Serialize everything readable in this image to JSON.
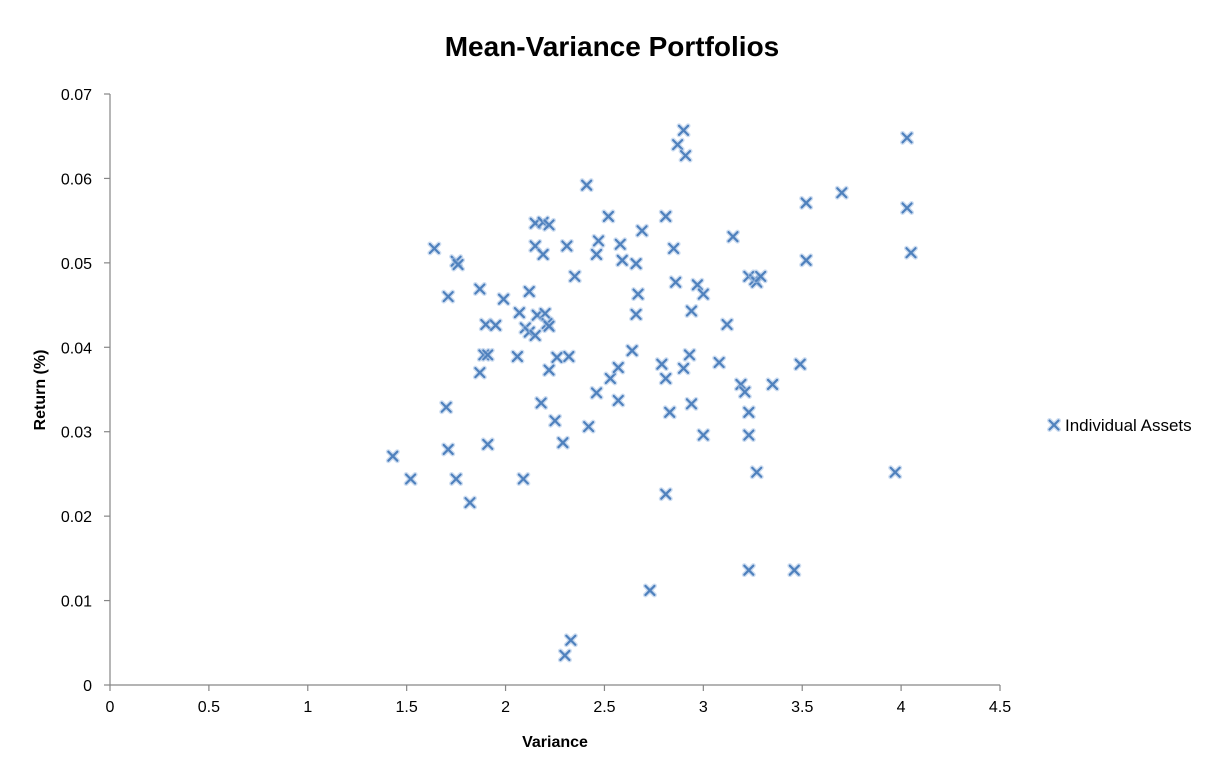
{
  "chart_data": {
    "type": "scatter",
    "title": "Mean-Variance Portfolios",
    "xlabel": "Variance",
    "ylabel": "Return (%)",
    "xlim": [
      0,
      4.5
    ],
    "ylim": [
      0,
      0.07
    ],
    "x_ticks": [
      "0",
      "0.5",
      "1",
      "1.5",
      "2",
      "2.5",
      "3",
      "3.5",
      "4",
      "4.5"
    ],
    "y_ticks": [
      "0",
      "0.01",
      "0.02",
      "0.03",
      "0.04",
      "0.05",
      "0.06",
      "0.07"
    ],
    "grid": false,
    "legend_position": "right",
    "marker": "x",
    "marker_color": "#4f81bd",
    "series": [
      {
        "name": "Individual Assets",
        "points": [
          [
            1.43,
            0.0271
          ],
          [
            1.52,
            0.0244
          ],
          [
            1.64,
            0.0517
          ],
          [
            1.7,
            0.0329
          ],
          [
            1.71,
            0.046
          ],
          [
            1.71,
            0.0279
          ],
          [
            1.75,
            0.0502
          ],
          [
            1.75,
            0.0244
          ],
          [
            1.76,
            0.0498
          ],
          [
            1.82,
            0.0216
          ],
          [
            1.87,
            0.0469
          ],
          [
            1.87,
            0.037
          ],
          [
            1.89,
            0.0391
          ],
          [
            1.9,
            0.0427
          ],
          [
            1.91,
            0.0391
          ],
          [
            1.91,
            0.0285
          ],
          [
            1.95,
            0.0426
          ],
          [
            1.99,
            0.0457
          ],
          [
            2.06,
            0.0389
          ],
          [
            2.07,
            0.0441
          ],
          [
            2.09,
            0.0244
          ],
          [
            2.1,
            0.0423
          ],
          [
            2.12,
            0.0466
          ],
          [
            2.12,
            0.0418
          ],
          [
            2.15,
            0.0547
          ],
          [
            2.15,
            0.052
          ],
          [
            2.15,
            0.0414
          ],
          [
            2.16,
            0.0438
          ],
          [
            2.18,
            0.0334
          ],
          [
            2.19,
            0.0548
          ],
          [
            2.19,
            0.051
          ],
          [
            2.2,
            0.044
          ],
          [
            2.21,
            0.0428
          ],
          [
            2.22,
            0.0545
          ],
          [
            2.22,
            0.0425
          ],
          [
            2.22,
            0.0373
          ],
          [
            2.25,
            0.0313
          ],
          [
            2.26,
            0.0388
          ],
          [
            2.29,
            0.0287
          ],
          [
            2.3,
            0.0035
          ],
          [
            2.31,
            0.052
          ],
          [
            2.32,
            0.0389
          ],
          [
            2.33,
            0.0053
          ],
          [
            2.35,
            0.0484
          ],
          [
            2.41,
            0.0592
          ],
          [
            2.42,
            0.0306
          ],
          [
            2.46,
            0.0346
          ],
          [
            2.46,
            0.051
          ],
          [
            2.47,
            0.0526
          ],
          [
            2.52,
            0.0555
          ],
          [
            2.53,
            0.0363
          ],
          [
            2.57,
            0.0337
          ],
          [
            2.57,
            0.0376
          ],
          [
            2.58,
            0.0522
          ],
          [
            2.59,
            0.0503
          ],
          [
            2.64,
            0.0396
          ],
          [
            2.66,
            0.0499
          ],
          [
            2.66,
            0.0439
          ],
          [
            2.67,
            0.0463
          ],
          [
            2.69,
            0.0538
          ],
          [
            2.73,
            0.0112
          ],
          [
            2.79,
            0.038
          ],
          [
            2.81,
            0.0555
          ],
          [
            2.81,
            0.0363
          ],
          [
            2.81,
            0.0226
          ],
          [
            2.83,
            0.0323
          ],
          [
            2.85,
            0.0517
          ],
          [
            2.86,
            0.0477
          ],
          [
            2.87,
            0.064
          ],
          [
            2.9,
            0.0657
          ],
          [
            2.9,
            0.0375
          ],
          [
            2.91,
            0.0627
          ],
          [
            2.93,
            0.0391
          ],
          [
            2.94,
            0.0443
          ],
          [
            2.94,
            0.0333
          ],
          [
            2.97,
            0.0474
          ],
          [
            3.0,
            0.0463
          ],
          [
            3.0,
            0.0296
          ],
          [
            3.08,
            0.0382
          ],
          [
            3.12,
            0.0427
          ],
          [
            3.15,
            0.0531
          ],
          [
            3.19,
            0.0356
          ],
          [
            3.21,
            0.0347
          ],
          [
            3.23,
            0.0484
          ],
          [
            3.23,
            0.0323
          ],
          [
            3.23,
            0.0296
          ],
          [
            3.23,
            0.0136
          ],
          [
            3.26,
            0.048
          ],
          [
            3.27,
            0.0477
          ],
          [
            3.27,
            0.0252
          ],
          [
            3.29,
            0.0484
          ],
          [
            3.35,
            0.0356
          ],
          [
            3.46,
            0.0136
          ],
          [
            3.49,
            0.038
          ],
          [
            3.52,
            0.0571
          ],
          [
            3.52,
            0.0503
          ],
          [
            3.7,
            0.0583
          ],
          [
            3.97,
            0.0252
          ],
          [
            4.03,
            0.0648
          ],
          [
            4.03,
            0.0565
          ],
          [
            4.05,
            0.0512
          ]
        ]
      }
    ]
  }
}
